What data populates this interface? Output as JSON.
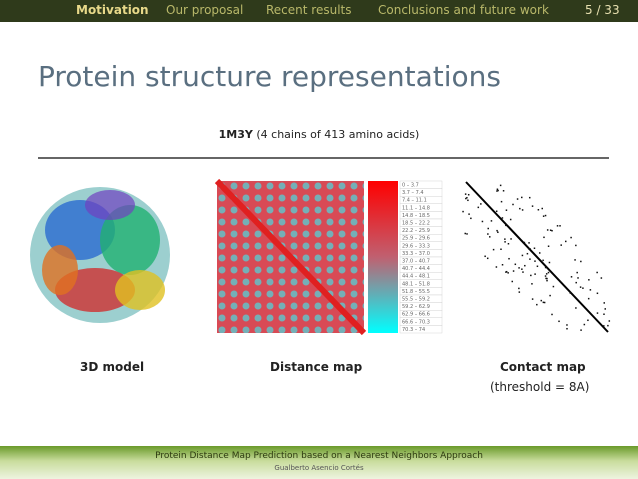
{
  "nav": {
    "items": [
      "Motivation",
      "Our proposal",
      "Recent results",
      "Conclusions and future work"
    ],
    "page_number": "5 / 33"
  },
  "slide": {
    "title": "Protein structure representations",
    "subtitle": {
      "id": "1M3Y",
      "text": "(4 chains of 413 amino acids)"
    },
    "distance_legend": [
      "0 – 3.7",
      "3.7 – 7.4",
      "7.4 – 11.1",
      "11.1 – 14.8",
      "14.8 – 18.5",
      "18.5 – 22.2",
      "22.2 – 25.9",
      "25.9 – 29.6",
      "29.6 – 33.3",
      "33.3 – 37.0",
      "37.0 – 40.7",
      "40.7 – 44.4",
      "44.4 – 48.1",
      "48.1 – 51.8",
      "51.8 – 55.5",
      "55.5 – 59.2",
      "59.2 – 62.9",
      "62.9 – 66.6",
      "66.6 – 70.3",
      "70.3 – 74"
    ],
    "captions": {
      "model": "3D model",
      "distance": "Distance map",
      "contact": "Contact map",
      "contact_note": "(threshold = 8A)"
    }
  },
  "footer": {
    "title": "Protein Distance Map Prediction based on a Nearest Neighbors Approach",
    "author": "Gualberto Asencio Cortés"
  }
}
